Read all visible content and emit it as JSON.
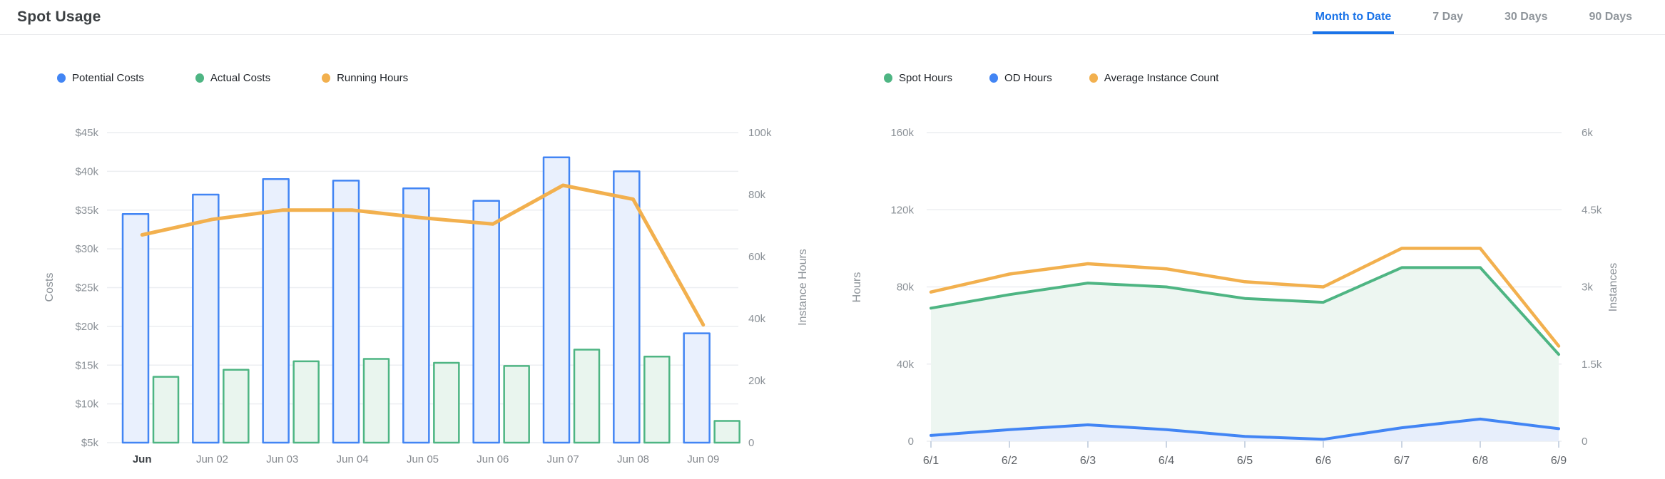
{
  "header": {
    "title": "Spot Usage",
    "tabs": [
      {
        "label": "Month to Date",
        "active": true
      },
      {
        "label": "7 Day",
        "active": false
      },
      {
        "label": "30 Days",
        "active": false
      },
      {
        "label": "90 Days",
        "active": false
      }
    ]
  },
  "colors": {
    "blue": "#4285F4",
    "green": "#4EB583",
    "orange": "#F2B04E",
    "blue_bar_fill": "#E9F0FD",
    "green_bar_fill": "#E9F5EE",
    "green_area_fill": "#EDF6F1",
    "blue_area_fill": "#E7EEFB",
    "active_tab_blue": "#1A73E8",
    "gridline": "#ECEEF1"
  },
  "chart_data": [
    {
      "id": "costs-chart",
      "type": "bar",
      "title": "Spot Usage — Costs vs Running Hours",
      "categories": [
        "Jun",
        "Jun 02",
        "Jun 03",
        "Jun 04",
        "Jun 05",
        "Jun 06",
        "Jun 07",
        "Jun 08",
        "Jun 09"
      ],
      "series": [
        {
          "name": "Potential Costs",
          "type": "bar",
          "axis": "left",
          "color_key": "blue",
          "fill_key": "blue_bar_fill",
          "values": [
            34500,
            37000,
            39000,
            38800,
            37800,
            36200,
            41800,
            40000,
            19100
          ]
        },
        {
          "name": "Actual Costs",
          "type": "bar",
          "axis": "left",
          "color_key": "green",
          "fill_key": "green_bar_fill",
          "values": [
            13500,
            14400,
            15500,
            15800,
            15300,
            14900,
            17000,
            16100,
            7800
          ]
        },
        {
          "name": "Running Hours",
          "type": "line",
          "axis": "right",
          "color_key": "orange",
          "values": [
            67000,
            72000,
            75000,
            75000,
            72500,
            70500,
            83000,
            78500,
            38000
          ]
        }
      ],
      "left_axis": {
        "label": "Costs",
        "min": 5000,
        "max": 45000,
        "tick_labels": [
          "$45k",
          "$40k",
          "$35k",
          "$30k",
          "$25k",
          "$20k",
          "$15k",
          "$10k",
          "$5k"
        ]
      },
      "right_axis": {
        "label": "Instance Hours",
        "min": 0,
        "max": 100000,
        "tick_labels": [
          "100k",
          "80k",
          "60k",
          "40k",
          "20k",
          "0"
        ]
      },
      "grid": true,
      "legend_position": "top-left"
    },
    {
      "id": "hours-chart",
      "type": "area",
      "title": "Spot Usage — Hours and Instances",
      "x": [
        "6/1",
        "6/2",
        "6/3",
        "6/4",
        "6/5",
        "6/6",
        "6/7",
        "6/8",
        "6/9"
      ],
      "series": [
        {
          "name": "Spot Hours",
          "type": "area",
          "axis": "left",
          "color_key": "green",
          "fill_key": "green_area_fill",
          "values": [
            69000,
            76000,
            82000,
            80000,
            74000,
            72000,
            90000,
            90000,
            45000
          ]
        },
        {
          "name": "OD Hours",
          "type": "area",
          "axis": "left",
          "color_key": "blue",
          "fill_key": "blue_area_fill",
          "values": [
            3000,
            6000,
            8500,
            6000,
            2500,
            1000,
            7000,
            11500,
            6500
          ]
        },
        {
          "name": "Average Instance Count",
          "type": "line",
          "axis": "right",
          "color_key": "orange",
          "values": [
            2900,
            3250,
            3450,
            3350,
            3100,
            3000,
            3750,
            3750,
            1850
          ]
        }
      ],
      "left_axis": {
        "label": "Hours",
        "min": 0,
        "max": 160000,
        "tick_labels": [
          "160k",
          "120k",
          "80k",
          "40k",
          "0"
        ]
      },
      "right_axis": {
        "label": "Instances",
        "min": 0,
        "max": 6000,
        "tick_labels": [
          "6k",
          "4.5k",
          "3k",
          "1.5k",
          "0"
        ]
      },
      "grid": true,
      "legend_position": "top-left"
    }
  ]
}
